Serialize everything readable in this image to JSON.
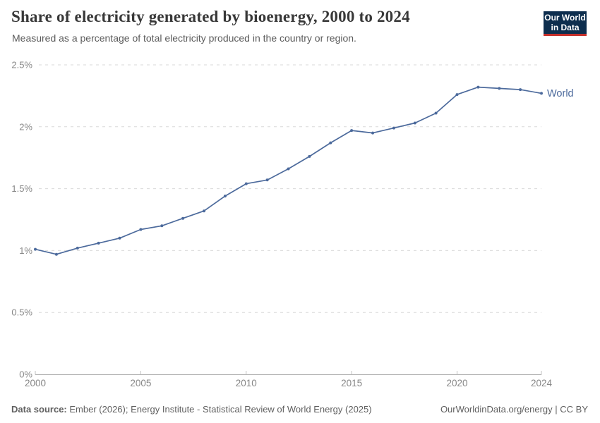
{
  "header": {
    "title": "Share of electricity generated by bioenergy, 2000 to 2024",
    "subtitle": "Measured as a percentage of total electricity produced in the country or region."
  },
  "logo": {
    "line1": "Our World",
    "line2": "in Data",
    "bg_color": "#0d2e4e",
    "accent_color": "#c5302b"
  },
  "chart_data": {
    "type": "line",
    "title": "Share of electricity generated by bioenergy, 2000 to 2024",
    "xlabel": "",
    "ylabel": "",
    "x": [
      2000,
      2001,
      2002,
      2003,
      2004,
      2005,
      2006,
      2007,
      2008,
      2009,
      2010,
      2011,
      2012,
      2013,
      2014,
      2015,
      2016,
      2017,
      2018,
      2019,
      2020,
      2021,
      2022,
      2023,
      2024
    ],
    "series": [
      {
        "name": "World",
        "color": "#4c6a9c",
        "values": [
          1.01,
          0.97,
          1.02,
          1.06,
          1.1,
          1.17,
          1.2,
          1.26,
          1.32,
          1.44,
          1.54,
          1.57,
          1.66,
          1.76,
          1.87,
          1.97,
          1.95,
          1.99,
          2.03,
          2.11,
          2.26,
          2.32,
          2.31,
          2.3,
          2.27
        ]
      }
    ],
    "xlim": [
      2000,
      2024
    ],
    "ylim": [
      0,
      2.5
    ],
    "x_ticks": {
      "values": [
        2000,
        2005,
        2010,
        2015,
        2020,
        2024
      ],
      "labels": [
        "2000",
        "2005",
        "2010",
        "2015",
        "2020",
        "2024"
      ]
    },
    "y_ticks": {
      "values": [
        0,
        0.5,
        1,
        1.5,
        2,
        2.5
      ],
      "labels": [
        "0%",
        "0.5%",
        "1%",
        "1.5%",
        "2%",
        "2.5%"
      ]
    },
    "grid": "horizontal dashed",
    "legend_position": "end-of-line label"
  },
  "colors": {
    "line": "#4c6a9c",
    "grid": "#d9d9d9",
    "axis": "#a8a8a8",
    "tick_mark": "#c2c2c2",
    "tick_text": "#878787",
    "title_text": "#383838",
    "subtitle_text": "#5b5b5b"
  },
  "footer": {
    "source_label": "Data source:",
    "source_text": "Ember (2026); Energy Institute - Statistical Review of World Energy (2025)",
    "credit": "OurWorldinData.org/energy | CC BY"
  }
}
